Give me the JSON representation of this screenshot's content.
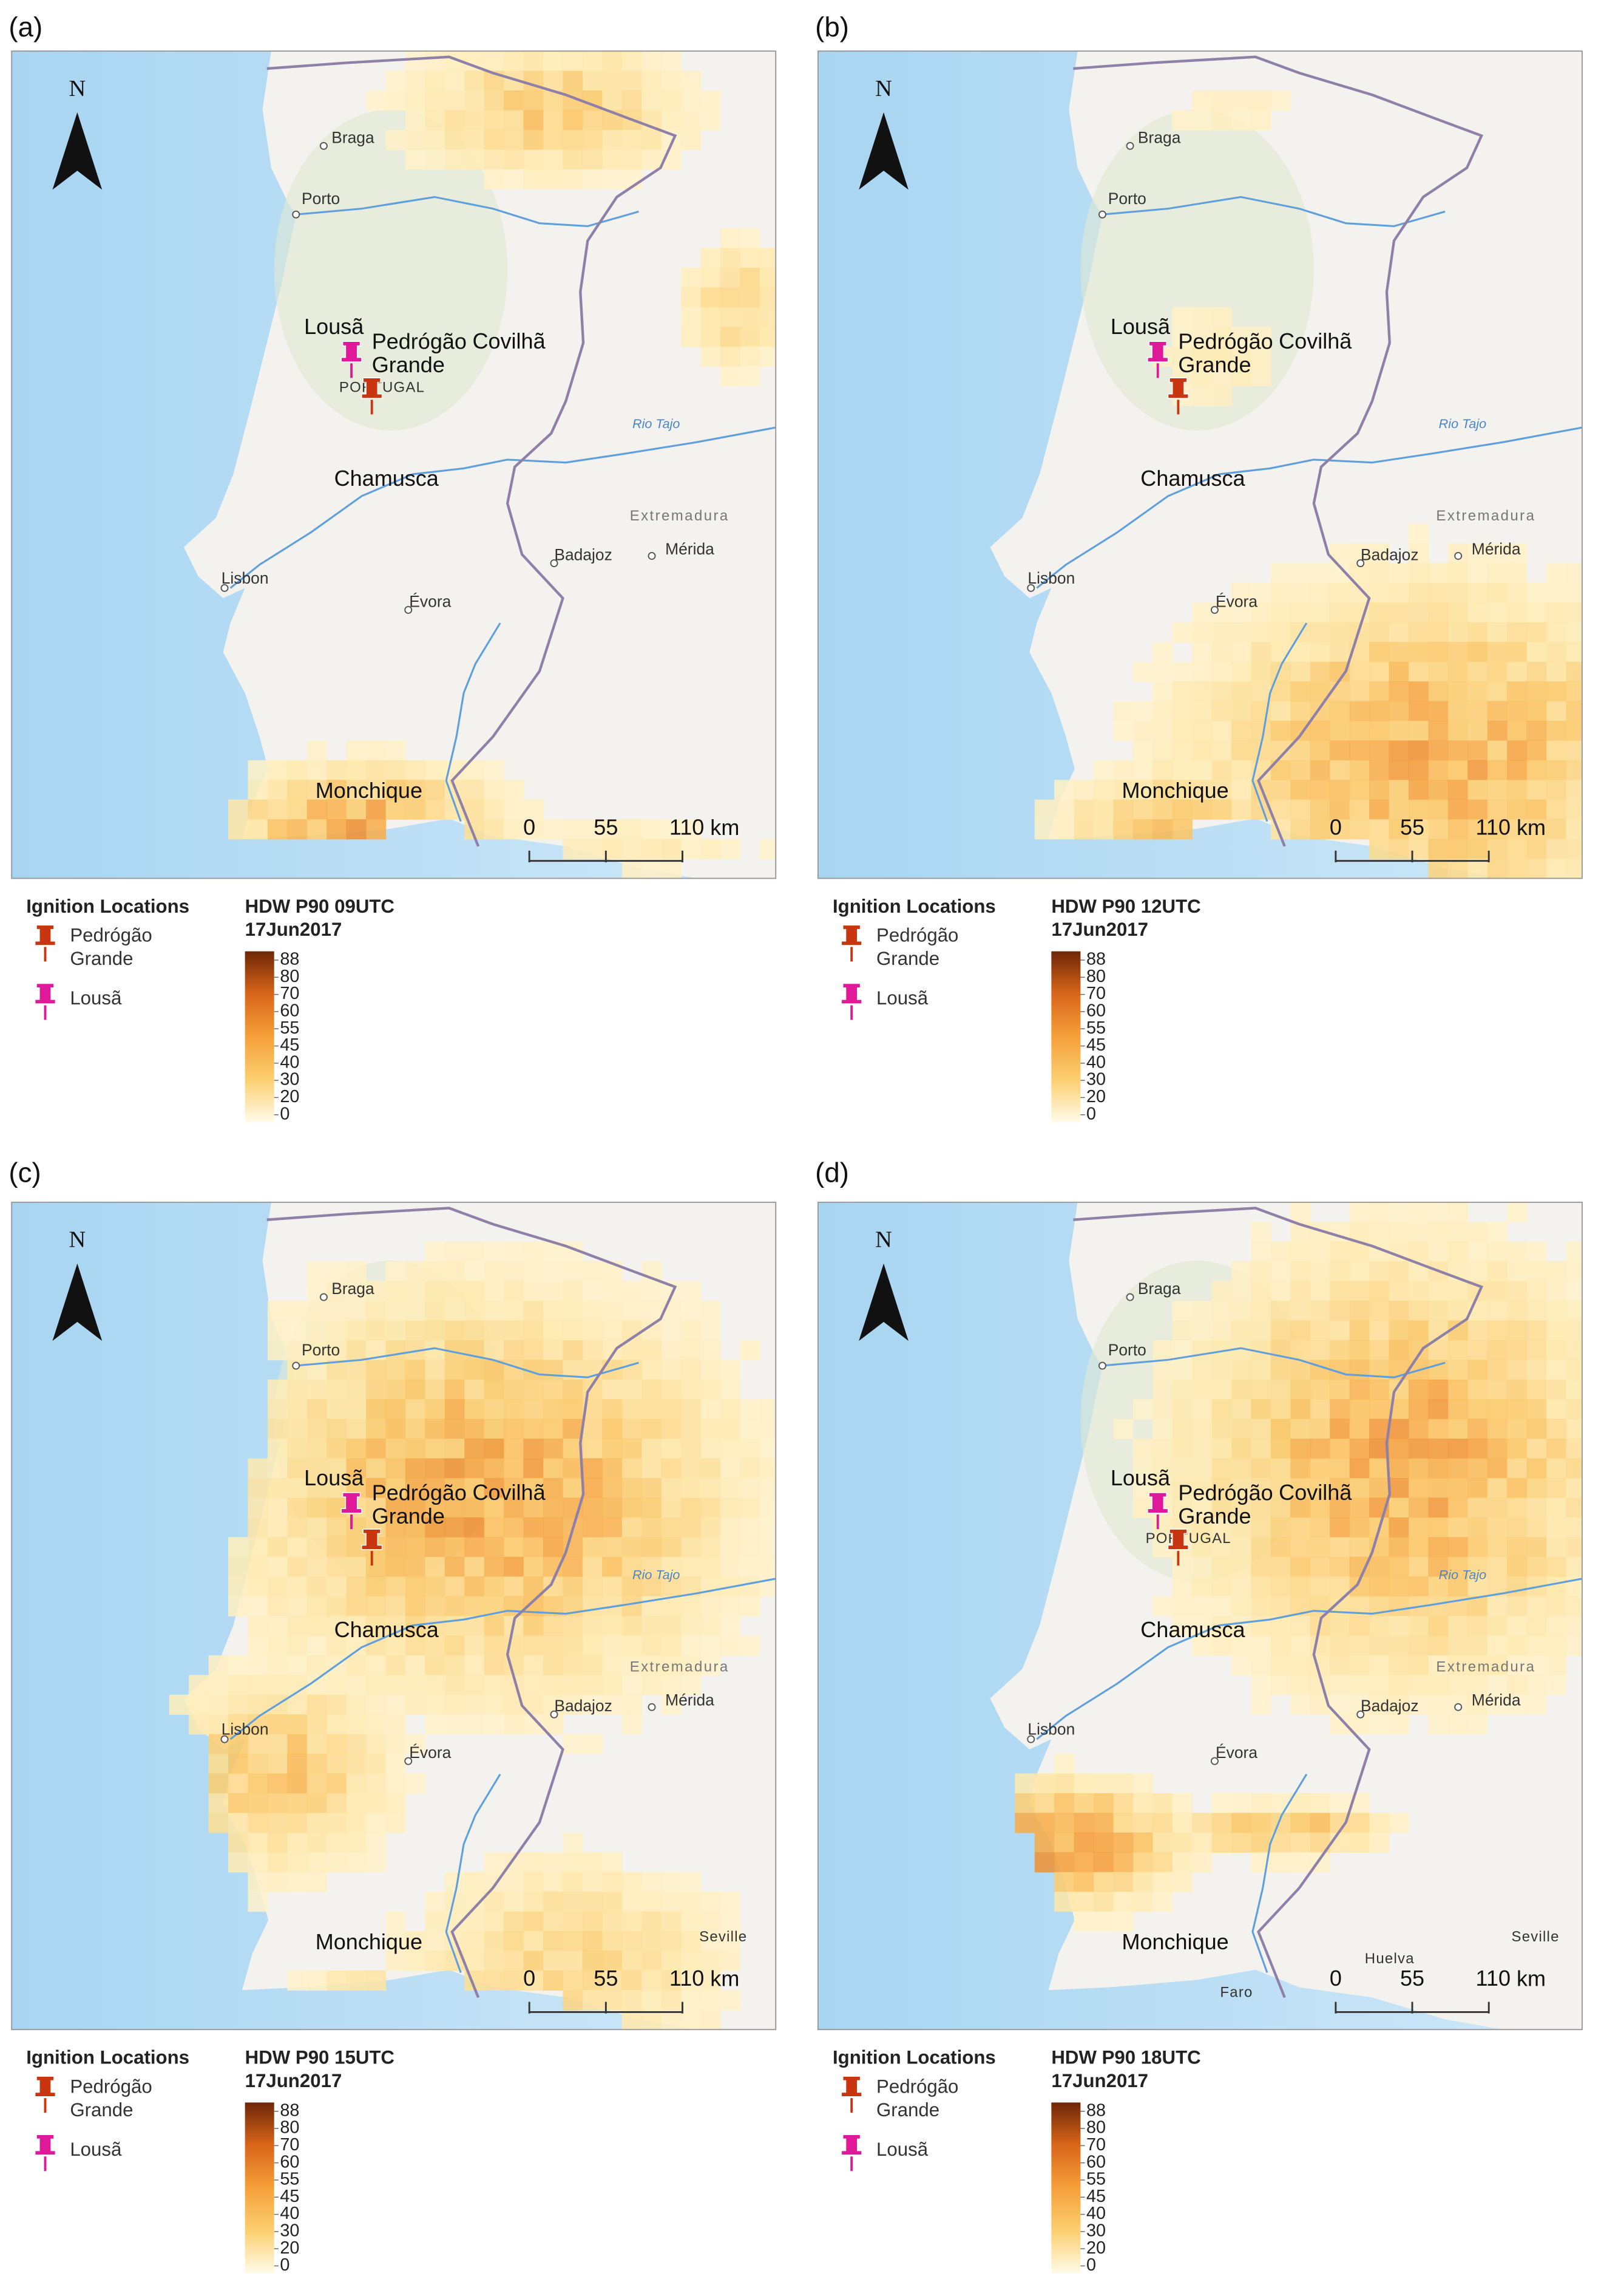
{
  "panels": [
    {
      "label": "(a)",
      "legend_title": "HDW P90 09UTC",
      "legend_date": "17Jun2017"
    },
    {
      "label": "(b)",
      "legend_title": "HDW P90 12UTC",
      "legend_date": "17Jun2017"
    },
    {
      "label": "(c)",
      "legend_title": "HDW P90 15UTC",
      "legend_date": "17Jun2017"
    },
    {
      "label": "(d)",
      "legend_title": "HDW P90 18UTC",
      "legend_date": "17Jun2017"
    }
  ],
  "places": [
    "Braga",
    "Porto",
    "Lousã",
    "Pedrógão Grande",
    "Covilhã",
    "Rio Tajo",
    "Chamusca",
    "Extremadura",
    "Badajoz",
    "Mérida",
    "Lisbon",
    "Évora",
    "Monchique"
  ],
  "extra_places": [
    [
      "PORTUGAL"
    ],
    [],
    [
      "Seville"
    ],
    [
      "PORTUGAL",
      "Huelva",
      "Faro",
      "Seville"
    ]
  ],
  "north": "N",
  "scale_bar": {
    "ticks": [
      0,
      55,
      110
    ],
    "unit": "km"
  },
  "ignition_legend": {
    "title": "Ignition Locations",
    "items": [
      "Pedrógão Grande",
      "Lousã"
    ]
  },
  "colorbar": {
    "ticks": [
      88,
      80,
      70,
      60,
      55,
      45,
      40,
      30,
      20,
      0
    ]
  }
}
